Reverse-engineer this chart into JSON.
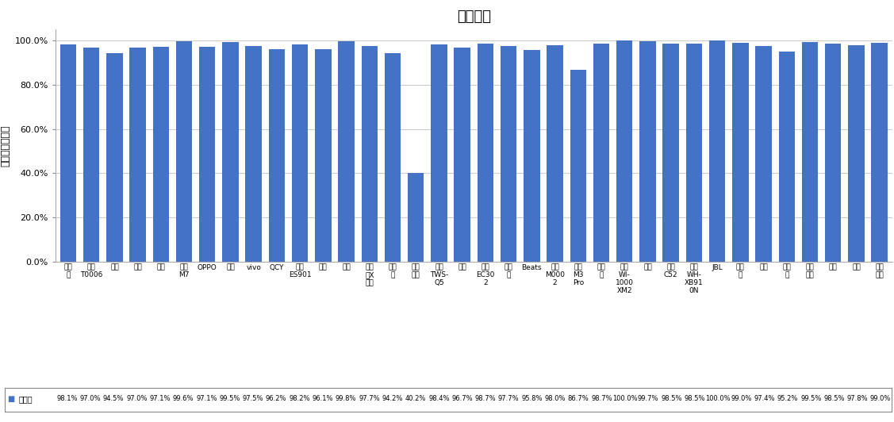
{
  "title": "通话降噪",
  "ylabel": "主观测试正确率",
  "categories": [
    "漫步\n者",
    "华为\nT0006",
    "苹果",
    "小米",
    "倒思",
    "酷狗\nM7",
    "OPPO",
    "荣耀",
    "vivo",
    "QCY",
    "万魔\nES901",
    "小度",
    "豆蕊",
    "漫步\n者X\n芋芯",
    "潮智\n能",
    "科大\n讯飞",
    "紹美\nTWS-\nQ5",
    "三星",
    "万魔\nEC30\n2",
    "搜波\n朋",
    "Beats",
    "华为\nM000\n2",
    "酷狗\nM3\nPro",
    "爱国\n者",
    "索尼\nWI-\n1000\nXM2",
    "山水",
    "紹美\nC52",
    "索尼\nWH-\nXB91\n0N",
    "JBL",
    "飞利\n浦",
    "联想",
    "第三\n角",
    "森海\n塞尔",
    "赛士",
    "索爱",
    "西伯\n利亚"
  ],
  "values": [
    98.1,
    97.0,
    94.5,
    97.0,
    97.1,
    99.6,
    97.1,
    99.5,
    97.5,
    96.2,
    98.2,
    96.1,
    99.8,
    97.7,
    94.2,
    40.2,
    98.4,
    96.7,
    98.7,
    97.7,
    95.8,
    98.0,
    86.7,
    98.7,
    100.0,
    99.7,
    98.5,
    98.5,
    100.0,
    99.0,
    97.4,
    95.2,
    99.5,
    98.5,
    97.8,
    99.0
  ],
  "bar_color": "#4472C4",
  "legend_label": "正确率",
  "ytick_labels": [
    "0.0%",
    "20.0%",
    "40.0%",
    "60.0%",
    "80.0%",
    "100.0%"
  ],
  "grid_color": "#C0C0C0",
  "title_fontsize": 13,
  "tick_fontsize": 6.5,
  "ylabel_fontsize": 9,
  "legend_fontsize": 7,
  "value_fontsize": 6
}
